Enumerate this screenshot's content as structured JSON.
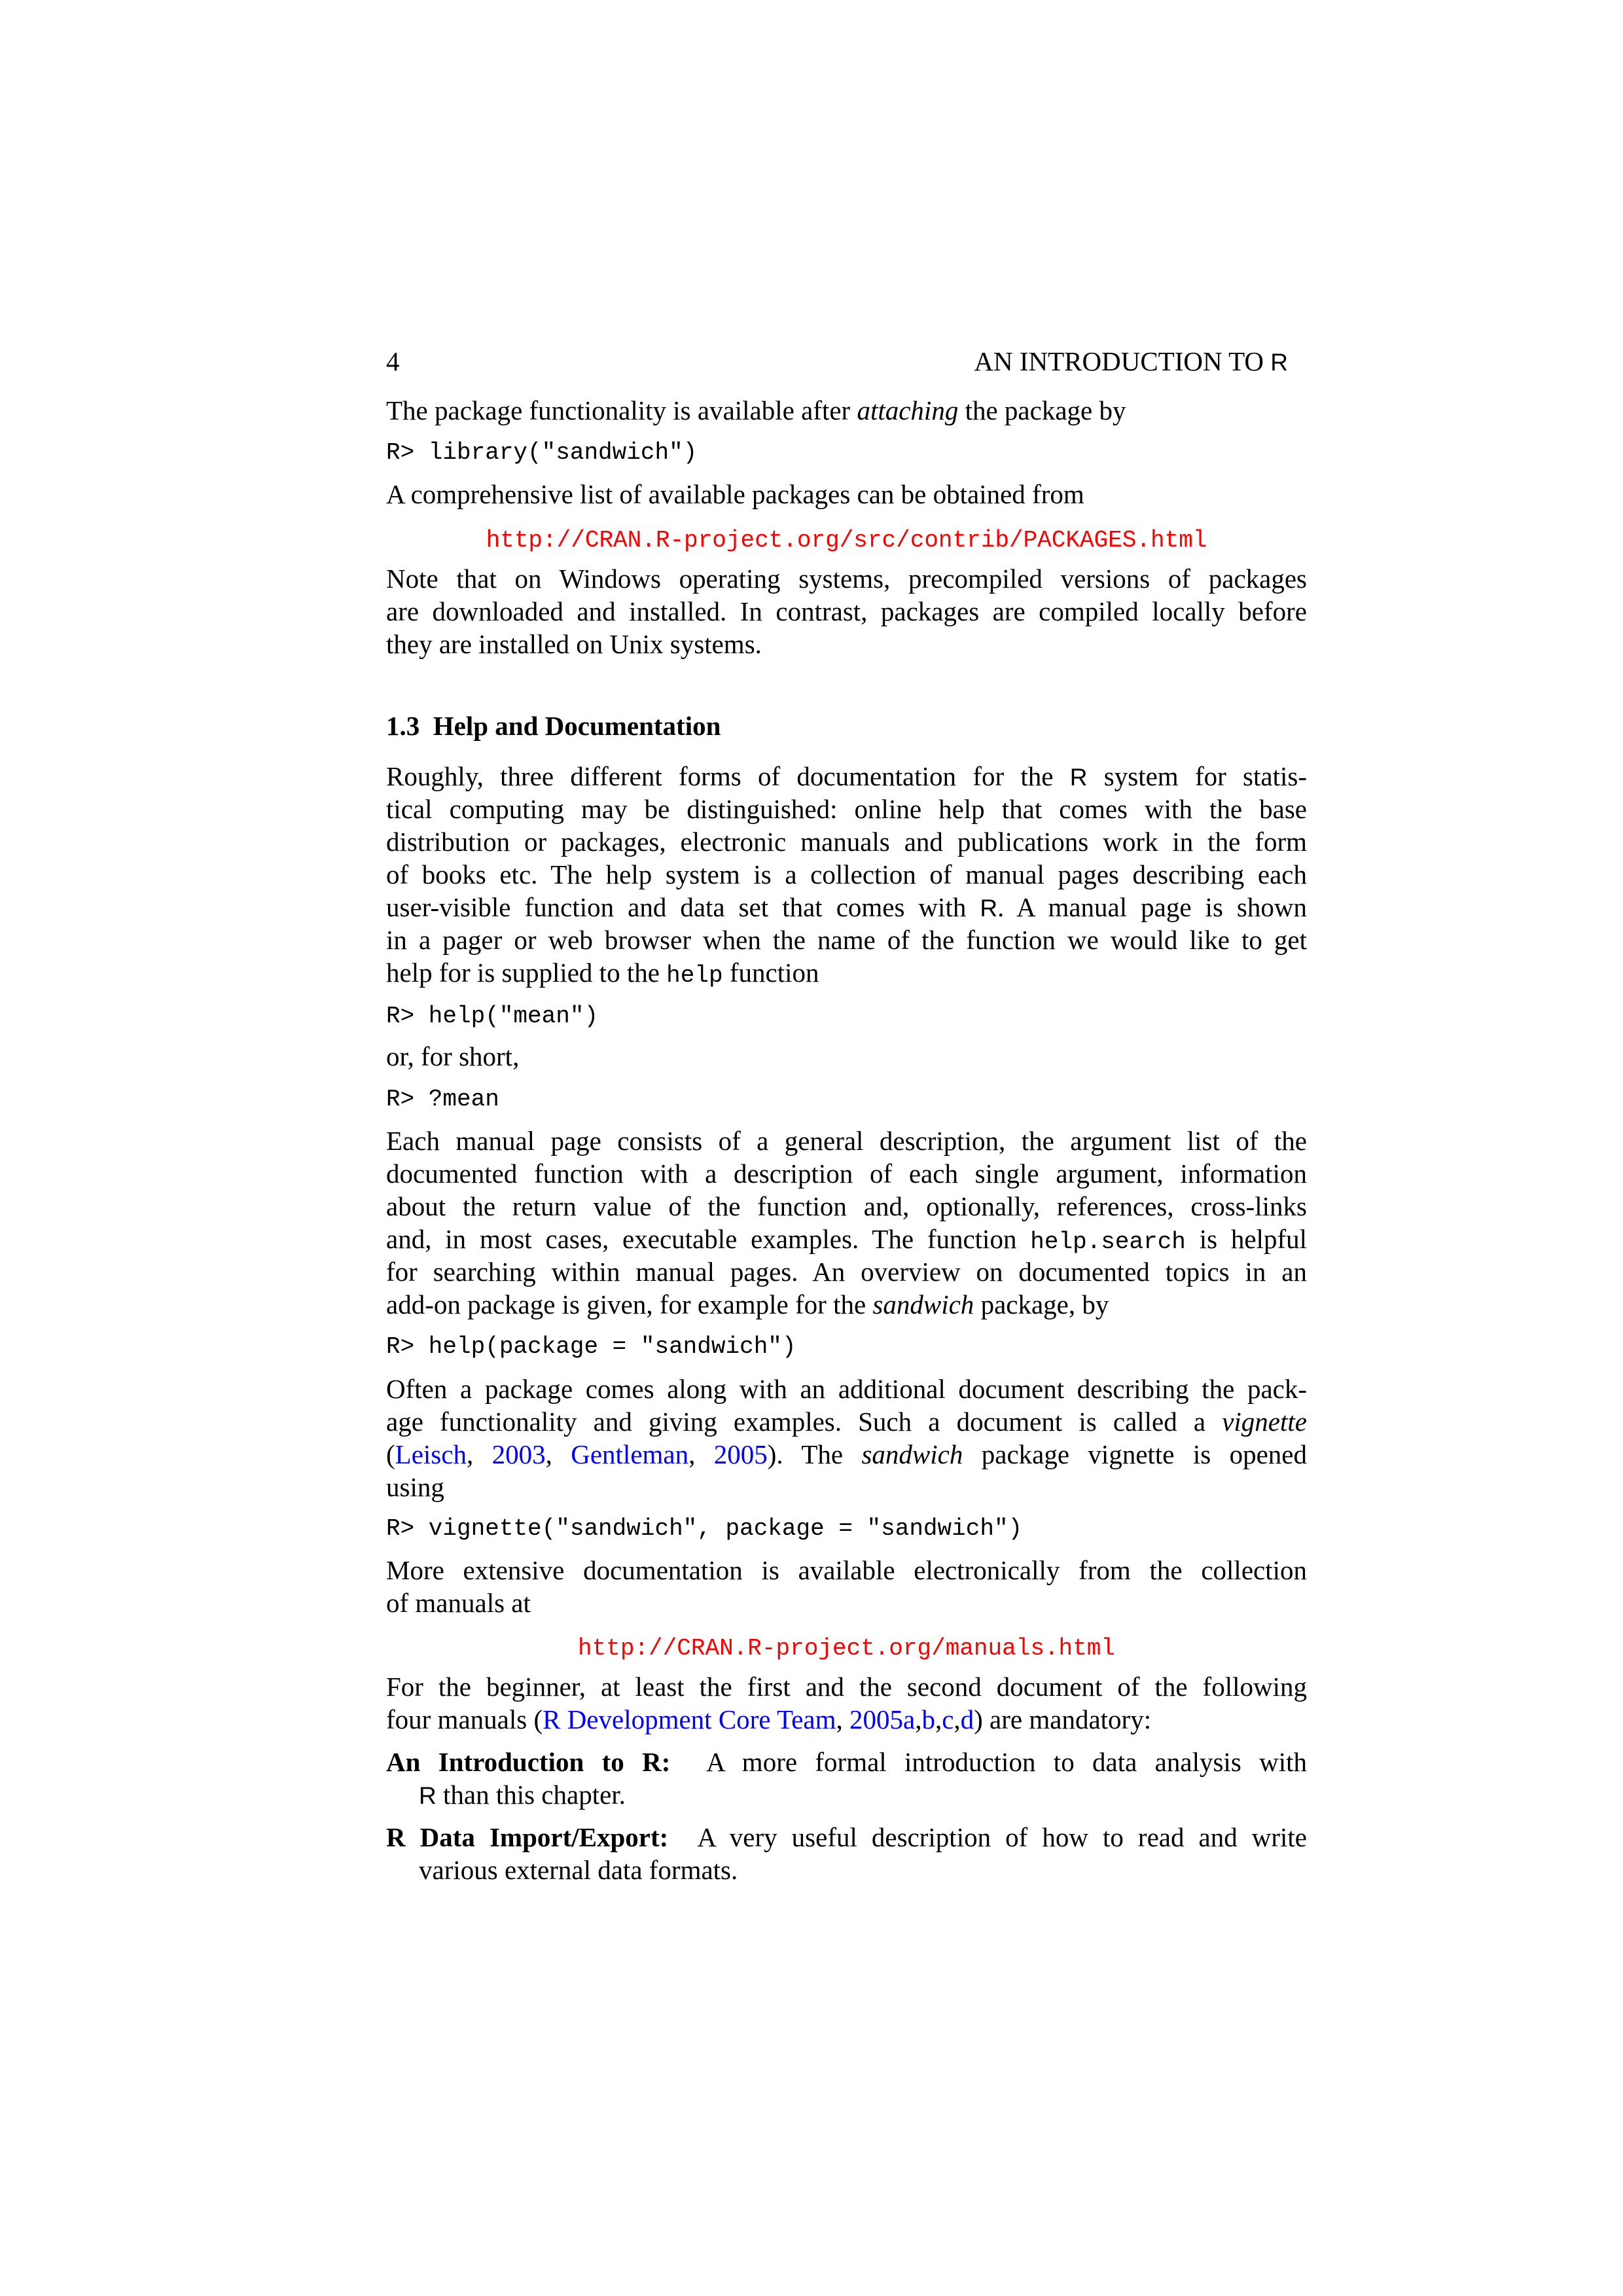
{
  "header": {
    "page_number": "4",
    "running_title": [
      {
        "t": "AN INTRODUCTION TO "
      },
      {
        "t": "R",
        "s": "sf"
      }
    ]
  },
  "colors": {
    "url": "#ff0000",
    "citation": "#0000ff",
    "text": "#000000"
  },
  "blocks": [
    {
      "type": "header"
    },
    {
      "type": "para",
      "lines": [
        [
          {
            "t": "The package functionality is available after "
          },
          {
            "t": "attaching",
            "s": "i"
          },
          {
            "t": " the package by"
          }
        ]
      ]
    },
    {
      "type": "code",
      "text": "R> library(\"sandwich\")"
    },
    {
      "type": "para",
      "lines": [
        [
          {
            "t": "A comprehensive list of available packages can be obtained from"
          }
        ]
      ]
    },
    {
      "type": "url",
      "text": "http://CRAN.R-project.org/src/contrib/PACKAGES.html"
    },
    {
      "type": "para",
      "lines": [
        [
          {
            "t": "Note that on Windows operating systems, precompiled versions of packages"
          }
        ],
        [
          {
            "t": "are downloaded and installed. In contrast, packages are compiled locally before"
          }
        ],
        [
          {
            "t": "they are installed on Unix systems."
          }
        ]
      ]
    },
    {
      "type": "heading",
      "text": "1.3  Help and Documentation"
    },
    {
      "type": "para",
      "lines": [
        [
          {
            "t": "Roughly, three different forms of documentation for the "
          },
          {
            "t": "R",
            "s": "sf"
          },
          {
            "t": " system for statis-"
          }
        ],
        [
          {
            "t": "tical computing may be distinguished: online help that comes with the base"
          }
        ],
        [
          {
            "t": "distribution or packages, electronic manuals and publications work in the form"
          }
        ],
        [
          {
            "t": "of books etc. The help system is a collection of manual pages describing each"
          }
        ],
        [
          {
            "t": "user-visible function and data set that comes with "
          },
          {
            "t": "R",
            "s": "sf"
          },
          {
            "t": ". A manual page is shown"
          }
        ],
        [
          {
            "t": "in a pager or web browser when the name of the function we would like to get"
          }
        ],
        [
          {
            "t": "help for is supplied to the "
          },
          {
            "t": "help",
            "s": "tt"
          },
          {
            "t": " function"
          }
        ]
      ]
    },
    {
      "type": "code",
      "text": "R> help(\"mean\")"
    },
    {
      "type": "para",
      "lines": [
        [
          {
            "t": "or, for short,"
          }
        ]
      ]
    },
    {
      "type": "code",
      "text": "R> ?mean"
    },
    {
      "type": "para",
      "lines": [
        [
          {
            "t": "Each manual page consists of a general description, the argument list of the"
          }
        ],
        [
          {
            "t": "documented function with a description of each single argument, information"
          }
        ],
        [
          {
            "t": "about the return value of the function and, optionally, references, cross-links"
          }
        ],
        [
          {
            "t": "and, in most cases, executable examples. The function "
          },
          {
            "t": "help.search",
            "s": "tt"
          },
          {
            "t": " is helpful"
          }
        ],
        [
          {
            "t": "for searching within manual pages. An overview on documented topics in an"
          }
        ],
        [
          {
            "t": "add-on package is given, for example for the "
          },
          {
            "t": "sandwich",
            "s": "i"
          },
          {
            "t": " package, by"
          }
        ]
      ]
    },
    {
      "type": "code",
      "text": "R> help(package = \"sandwich\")"
    },
    {
      "type": "para",
      "lines": [
        [
          {
            "t": "Often a package comes along with an additional document describing the pack-"
          }
        ],
        [
          {
            "t": "age functionality and giving examples. Such a document is called a "
          },
          {
            "t": "vignette",
            "s": "i"
          }
        ],
        [
          {
            "t": "("
          },
          {
            "t": "Leisch",
            "s": "cite"
          },
          {
            "t": ", "
          },
          {
            "t": "2003",
            "s": "cite"
          },
          {
            "t": ", "
          },
          {
            "t": "Gentleman",
            "s": "cite"
          },
          {
            "t": ", "
          },
          {
            "t": "2005",
            "s": "cite"
          },
          {
            "t": "). The "
          },
          {
            "t": "sandwich",
            "s": "i"
          },
          {
            "t": " package vignette is opened"
          }
        ],
        [
          {
            "t": "using"
          }
        ]
      ]
    },
    {
      "type": "code",
      "text": "R> vignette(\"sandwich\", package = \"sandwich\")"
    },
    {
      "type": "para",
      "lines": [
        [
          {
            "t": "More extensive documentation is available electronically from the collection"
          }
        ],
        [
          {
            "t": "of manuals at"
          }
        ]
      ]
    },
    {
      "type": "url",
      "text": "http://CRAN.R-project.org/manuals.html"
    },
    {
      "type": "para",
      "lines": [
        [
          {
            "t": "For the beginner, at least the first and the second document of the following"
          }
        ],
        [
          {
            "t": "four manuals ("
          },
          {
            "t": "R Development Core Team",
            "s": "cite"
          },
          {
            "t": ", "
          },
          {
            "t": "2005a",
            "s": "cite"
          },
          {
            "t": ","
          },
          {
            "t": "b",
            "s": "cite"
          },
          {
            "t": ","
          },
          {
            "t": "c",
            "s": "cite"
          },
          {
            "t": ","
          },
          {
            "t": "d",
            "s": "cite"
          },
          {
            "t": ") are mandatory:"
          }
        ]
      ]
    },
    {
      "type": "item",
      "label": "An Introduction to R:",
      "lines": [
        [
          {
            "t": "A more formal introduction to data analysis with"
          }
        ],
        [
          {
            "t": "R",
            "s": "sf"
          },
          {
            "t": " than this chapter."
          }
        ]
      ]
    },
    {
      "type": "item",
      "label": "R Data Import/Export:",
      "lines": [
        [
          {
            "t": "A very useful description of how to read and write"
          }
        ],
        [
          {
            "t": "various external data formats."
          }
        ]
      ]
    }
  ]
}
